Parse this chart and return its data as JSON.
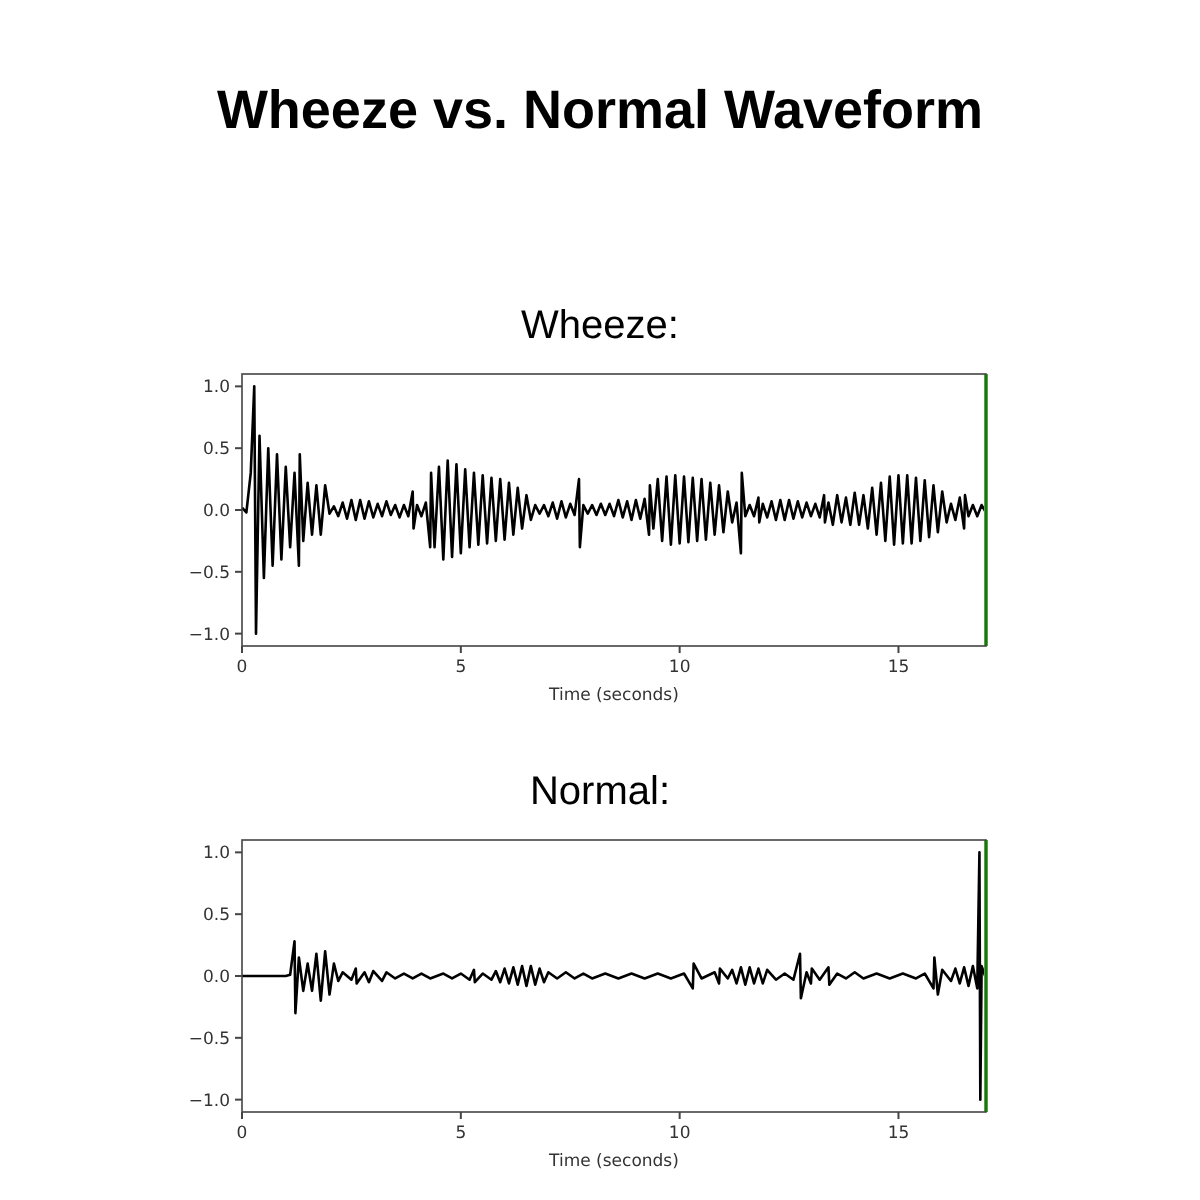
{
  "chart_data": [
    {
      "type": "line",
      "title": "Wheeze vs. Normal Waveform",
      "subtitle": "Wheeze:",
      "xlabel": "Time (seconds)",
      "xlim": [
        0,
        17
      ],
      "ylim": [
        -1.1,
        1.1
      ],
      "xticks": [
        0,
        5,
        10,
        15
      ],
      "yticks": [
        {
          "value": -1,
          "label": "−1.0"
        },
        {
          "value": -0.5,
          "label": "−0.5"
        },
        {
          "value": 0,
          "label": "0.0"
        },
        {
          "value": 0.5,
          "label": "0.5"
        },
        {
          "value": 1,
          "label": "1.0"
        }
      ],
      "grid": false,
      "line_style": "solid",
      "marker": "none",
      "ref_lines": [
        {
          "axis": "x",
          "value": 17,
          "color": "#33bb22"
        }
      ],
      "series": [
        {
          "color": "#000000",
          "x": [
            0,
            0.1,
            0.2,
            0.28,
            0.32,
            0.4,
            0.5,
            0.6,
            0.7,
            0.8,
            0.9,
            1.0,
            1.1,
            1.2,
            1.3,
            1.32,
            1.4,
            1.5,
            1.6,
            1.7,
            1.8,
            1.9,
            2.0,
            2.1,
            2.2,
            2.3,
            2.4,
            2.5,
            2.6,
            2.7,
            2.8,
            2.9,
            3.0,
            3.1,
            3.2,
            3.3,
            3.4,
            3.5,
            3.6,
            3.7,
            3.8,
            3.9,
            3.92,
            4.0,
            4.1,
            4.2,
            4.3,
            4.32,
            4.4,
            4.5,
            4.6,
            4.7,
            4.8,
            4.9,
            5.0,
            5.1,
            5.2,
            5.3,
            5.4,
            5.5,
            5.6,
            5.7,
            5.8,
            5.9,
            6.0,
            6.1,
            6.2,
            6.3,
            6.4,
            6.5,
            6.6,
            6.7,
            6.8,
            6.9,
            7.0,
            7.1,
            7.2,
            7.3,
            7.4,
            7.5,
            7.6,
            7.7,
            7.72,
            7.8,
            7.9,
            8.0,
            8.1,
            8.2,
            8.3,
            8.4,
            8.5,
            8.6,
            8.7,
            8.8,
            8.9,
            9.0,
            9.1,
            9.2,
            9.3,
            9.32,
            9.4,
            9.5,
            9.6,
            9.7,
            9.8,
            9.9,
            10.0,
            10.1,
            10.2,
            10.3,
            10.4,
            10.5,
            10.6,
            10.7,
            10.8,
            10.9,
            11.0,
            11.1,
            11.2,
            11.3,
            11.4,
            11.42,
            11.5,
            11.6,
            11.7,
            11.8,
            11.82,
            11.9,
            12.0,
            12.1,
            12.2,
            12.3,
            12.4,
            12.5,
            12.6,
            12.7,
            12.8,
            12.9,
            13.0,
            13.1,
            13.2,
            13.3,
            13.32,
            13.4,
            13.5,
            13.6,
            13.7,
            13.8,
            13.9,
            14.0,
            14.1,
            14.2,
            14.3,
            14.4,
            14.5,
            14.6,
            14.7,
            14.8,
            14.9,
            15.0,
            15.1,
            15.2,
            15.3,
            15.4,
            15.5,
            15.6,
            15.7,
            15.8,
            15.9,
            16.0,
            16.1,
            16.2,
            16.3,
            16.4,
            16.5,
            16.52,
            16.6,
            16.7,
            16.8,
            16.9,
            17.0
          ],
          "values": [
            0.02,
            -0.02,
            0.3,
            1.0,
            -1.0,
            0.6,
            -0.55,
            0.5,
            -0.45,
            0.45,
            -0.4,
            0.35,
            -0.3,
            0.3,
            -0.45,
            0.45,
            -0.25,
            0.22,
            -0.2,
            0.2,
            -0.2,
            0.2,
            -0.03,
            0.03,
            -0.05,
            0.06,
            -0.07,
            0.08,
            -0.08,
            0.08,
            -0.07,
            0.07,
            -0.06,
            0.05,
            -0.05,
            0.07,
            -0.04,
            0.04,
            -0.06,
            0.04,
            -0.05,
            0.15,
            -0.15,
            0.04,
            -0.05,
            0.06,
            -0.3,
            0.3,
            -0.3,
            0.35,
            -0.4,
            0.4,
            -0.38,
            0.37,
            -0.35,
            0.33,
            -0.3,
            0.3,
            -0.28,
            0.28,
            -0.27,
            0.26,
            -0.25,
            0.25,
            -0.24,
            0.22,
            -0.2,
            0.18,
            -0.15,
            0.12,
            -0.08,
            0.04,
            -0.03,
            0.04,
            -0.05,
            0.06,
            -0.07,
            0.07,
            -0.06,
            0.05,
            -0.04,
            0.25,
            -0.3,
            0.04,
            -0.03,
            0.04,
            -0.04,
            0.05,
            -0.04,
            0.05,
            -0.05,
            0.08,
            -0.06,
            0.07,
            -0.08,
            0.08,
            -0.07,
            0.09,
            -0.2,
            0.2,
            -0.15,
            0.25,
            -0.25,
            0.27,
            -0.28,
            0.28,
            -0.27,
            0.27,
            -0.26,
            0.26,
            -0.25,
            0.25,
            -0.24,
            0.22,
            -0.2,
            0.2,
            -0.18,
            0.15,
            -0.1,
            0.06,
            -0.35,
            0.3,
            -0.05,
            0.04,
            -0.05,
            0.1,
            -0.1,
            0.05,
            -0.06,
            0.07,
            -0.08,
            0.08,
            -0.08,
            0.08,
            -0.07,
            0.07,
            -0.06,
            0.06,
            -0.05,
            0.05,
            -0.06,
            0.12,
            -0.1,
            0.06,
            -0.12,
            0.12,
            -0.1,
            0.1,
            -0.12,
            0.14,
            -0.12,
            0.12,
            -0.15,
            0.18,
            -0.2,
            0.22,
            -0.25,
            0.27,
            -0.28,
            0.28,
            -0.27,
            0.28,
            -0.27,
            0.26,
            -0.25,
            0.24,
            -0.22,
            0.2,
            -0.18,
            0.15,
            -0.1,
            0.05,
            -0.08,
            0.1,
            -0.15,
            0.12,
            -0.05,
            0.04,
            -0.05,
            0.04,
            -0.02
          ]
        }
      ]
    },
    {
      "type": "line",
      "subtitle": "Normal:",
      "xlabel": "Time (seconds)",
      "xlim": [
        0,
        17
      ],
      "ylim": [
        -1.1,
        1.1
      ],
      "xticks": [
        0,
        5,
        10,
        15
      ],
      "yticks": [
        {
          "value": -1,
          "label": "−1.0"
        },
        {
          "value": -0.5,
          "label": "−0.5"
        },
        {
          "value": 0,
          "label": "0.0"
        },
        {
          "value": 0.5,
          "label": "0.5"
        },
        {
          "value": 1,
          "label": "1.0"
        }
      ],
      "grid": false,
      "line_style": "solid",
      "marker": "none",
      "ref_lines": [
        {
          "axis": "x",
          "value": 17,
          "color": "#33bb22"
        }
      ],
      "series": [
        {
          "color": "#000000",
          "x": [
            0,
            1.0,
            1.1,
            1.2,
            1.22,
            1.3,
            1.4,
            1.5,
            1.6,
            1.7,
            1.8,
            1.9,
            2.0,
            2.1,
            2.2,
            2.3,
            2.5,
            2.6,
            2.62,
            2.8,
            2.9,
            3.0,
            3.2,
            3.3,
            3.5,
            3.7,
            3.9,
            4.1,
            4.3,
            4.6,
            4.8,
            5.0,
            5.2,
            5.3,
            5.32,
            5.5,
            5.7,
            5.8,
            5.9,
            6.0,
            6.1,
            6.2,
            6.3,
            6.4,
            6.5,
            6.6,
            6.7,
            6.8,
            6.9,
            7.0,
            7.2,
            7.4,
            7.6,
            7.8,
            8.0,
            8.3,
            8.6,
            8.9,
            9.2,
            9.5,
            9.8,
            10.1,
            10.3,
            10.32,
            10.5,
            10.8,
            10.9,
            10.92,
            11.1,
            11.2,
            11.3,
            11.4,
            11.5,
            11.6,
            11.7,
            11.8,
            11.9,
            12.0,
            12.2,
            12.4,
            12.6,
            12.75,
            12.77,
            12.9,
            13.0,
            13.02,
            13.2,
            13.4,
            13.42,
            13.6,
            13.8,
            14.0,
            14.2,
            14.5,
            14.8,
            15.1,
            15.4,
            15.6,
            15.8,
            15.82,
            15.9,
            16.0,
            16.2,
            16.3,
            16.4,
            16.5,
            16.6,
            16.7,
            16.8,
            16.85,
            16.87,
            16.9,
            17.0
          ],
          "values": [
            0,
            0,
            0.01,
            0.28,
            -0.3,
            0.15,
            -0.12,
            0.1,
            -0.12,
            0.18,
            -0.2,
            0.2,
            -0.15,
            0.1,
            -0.04,
            0.03,
            -0.03,
            0.06,
            -0.06,
            0.03,
            -0.05,
            0.04,
            -0.04,
            0.03,
            -0.02,
            0.02,
            -0.02,
            0.02,
            -0.02,
            0.02,
            -0.02,
            0.02,
            -0.03,
            0.05,
            -0.05,
            0.02,
            -0.03,
            0.04,
            -0.05,
            0.06,
            -0.06,
            0.07,
            -0.07,
            0.08,
            -0.08,
            0.08,
            -0.07,
            0.06,
            -0.05,
            0.03,
            -0.02,
            0.03,
            -0.02,
            0.02,
            -0.02,
            0.02,
            -0.02,
            0.02,
            -0.02,
            0.02,
            -0.02,
            0.02,
            -0.1,
            0.1,
            -0.02,
            0.03,
            -0.06,
            0.06,
            -0.02,
            0.05,
            -0.06,
            0.07,
            -0.07,
            0.07,
            -0.06,
            0.06,
            -0.06,
            0.05,
            -0.03,
            0.02,
            -0.03,
            0.18,
            -0.18,
            0.03,
            -0.06,
            0.06,
            -0.03,
            0.07,
            -0.07,
            0.02,
            -0.02,
            0.03,
            -0.02,
            0.02,
            -0.02,
            0.02,
            -0.02,
            0.02,
            -0.1,
            0.15,
            -0.15,
            0.05,
            -0.04,
            0.06,
            -0.06,
            0.07,
            -0.08,
            0.08,
            -0.1,
            1.0,
            -1.0,
            0.08,
            -0.02
          ]
        }
      ]
    }
  ]
}
